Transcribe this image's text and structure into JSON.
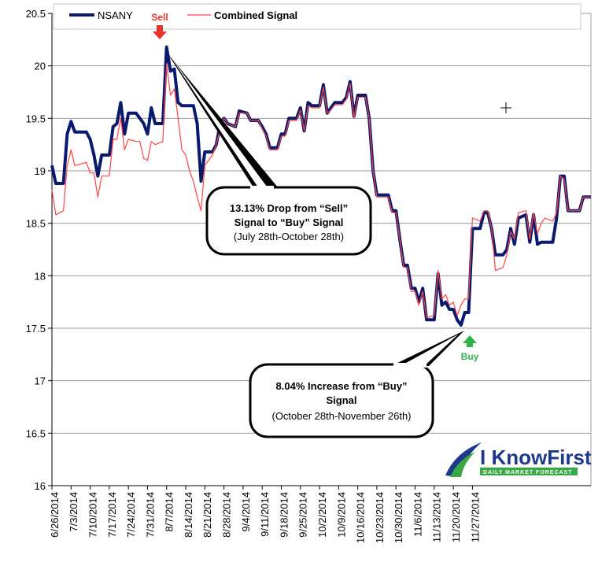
{
  "chart_data": {
    "type": "line",
    "title": "",
    "xlabel": "",
    "ylabel": "",
    "ylim": [
      16,
      20.5
    ],
    "yticks": [
      "16",
      "16.5",
      "17",
      "17.5",
      "18",
      "18.5",
      "19",
      "19.5",
      "20",
      "20.5"
    ],
    "x_tick_labels": [
      "6/26/2014",
      "7/3/2014",
      "7/10/2014",
      "7/17/2014",
      "7/24/2014",
      "7/31/2014",
      "8/7/2014",
      "8/14/2014",
      "8/21/2014",
      "8/28/2014",
      "9/4/2014",
      "9/11/2014",
      "9/18/2014",
      "9/25/2014",
      "10/2/2014",
      "10/9/2014",
      "10/16/2014",
      "10/23/2014",
      "10/30/2014",
      "11/6/2014",
      "11/13/2014",
      "11/20/2014",
      "11/27/2014"
    ],
    "grid": true,
    "legend_position": "top",
    "series": [
      {
        "name": "NSANY",
        "color": "#0a1a6e",
        "points": [
          [
            0,
            19.05
          ],
          [
            1,
            18.88
          ],
          [
            3,
            18.88
          ],
          [
            4,
            19.35
          ],
          [
            5,
            19.47
          ],
          [
            6,
            19.37
          ],
          [
            9,
            19.37
          ],
          [
            10,
            19.3
          ],
          [
            11,
            19.15
          ],
          [
            12,
            18.95
          ],
          [
            13,
            19.15
          ],
          [
            15,
            19.15
          ],
          [
            16,
            19.42
          ],
          [
            17,
            19.45
          ],
          [
            18,
            19.65
          ],
          [
            19,
            19.35
          ],
          [
            20,
            19.55
          ],
          [
            22,
            19.55
          ],
          [
            23,
            19.5
          ],
          [
            24,
            19.45
          ],
          [
            25,
            19.35
          ],
          [
            26,
            19.6
          ],
          [
            27,
            19.45
          ],
          [
            29,
            19.45
          ],
          [
            30,
            20.18
          ],
          [
            31,
            19.95
          ],
          [
            32,
            19.97
          ],
          [
            33,
            19.65
          ],
          [
            34,
            19.62
          ],
          [
            37,
            19.62
          ],
          [
            38,
            19.45
          ],
          [
            39,
            18.9
          ],
          [
            40,
            19.18
          ],
          [
            42,
            19.18
          ],
          [
            43,
            19.25
          ],
          [
            44,
            19.45
          ],
          [
            45,
            19.5
          ],
          [
            46,
            19.45
          ],
          [
            48,
            19.42
          ],
          [
            49,
            19.57
          ],
          [
            51,
            19.55
          ],
          [
            52,
            19.48
          ],
          [
            54,
            19.48
          ],
          [
            55,
            19.42
          ],
          [
            56,
            19.35
          ],
          [
            57,
            19.22
          ],
          [
            59,
            19.22
          ],
          [
            60,
            19.35
          ],
          [
            61,
            19.35
          ],
          [
            62,
            19.5
          ],
          [
            64,
            19.5
          ],
          [
            65,
            19.6
          ],
          [
            66,
            19.38
          ],
          [
            67,
            19.65
          ],
          [
            68,
            19.62
          ],
          [
            70,
            19.62
          ],
          [
            71,
            19.82
          ],
          [
            72,
            19.55
          ],
          [
            73,
            19.6
          ],
          [
            74,
            19.65
          ],
          [
            76,
            19.65
          ],
          [
            77,
            19.7
          ],
          [
            78,
            19.85
          ],
          [
            79,
            19.52
          ],
          [
            80,
            19.72
          ],
          [
            82,
            19.72
          ],
          [
            83,
            19.5
          ],
          [
            84,
            19.0
          ],
          [
            85,
            18.77
          ],
          [
            88,
            18.77
          ],
          [
            89,
            18.62
          ],
          [
            90,
            18.62
          ],
          [
            91,
            18.35
          ],
          [
            92,
            18.1
          ],
          [
            93,
            18.1
          ],
          [
            94,
            17.88
          ],
          [
            95,
            17.88
          ],
          [
            96,
            17.75
          ],
          [
            97,
            17.88
          ],
          [
            98,
            17.58
          ],
          [
            100,
            17.58
          ],
          [
            101,
            18.02
          ],
          [
            102,
            17.72
          ],
          [
            103,
            17.75
          ],
          [
            104,
            17.68
          ],
          [
            105,
            17.68
          ],
          [
            106,
            17.58
          ],
          [
            107,
            17.53
          ],
          [
            108,
            17.65
          ],
          [
            109,
            17.65
          ],
          [
            110,
            18.45
          ],
          [
            112,
            18.45
          ],
          [
            113,
            18.6
          ],
          [
            114,
            18.6
          ],
          [
            115,
            18.45
          ],
          [
            116,
            18.2
          ],
          [
            118,
            18.2
          ],
          [
            119,
            18.25
          ],
          [
            120,
            18.45
          ],
          [
            121,
            18.3
          ],
          [
            122,
            18.55
          ],
          [
            124,
            18.58
          ],
          [
            125,
            18.32
          ],
          [
            126,
            18.58
          ],
          [
            127,
            18.3
          ],
          [
            128,
            18.32
          ],
          [
            129,
            18.32
          ],
          [
            131,
            18.32
          ],
          [
            132,
            18.55
          ],
          [
            133,
            18.95
          ],
          [
            134,
            18.95
          ],
          [
            135,
            18.62
          ],
          [
            138,
            18.62
          ],
          [
            139,
            18.75
          ],
          [
            141,
            18.75
          ]
        ]
      },
      {
        "name": "Combined Signal",
        "color": "#ff4444",
        "points": [
          [
            0,
            18.82
          ],
          [
            1,
            18.58
          ],
          [
            3,
            18.62
          ],
          [
            4,
            19.05
          ],
          [
            5,
            19.2
          ],
          [
            6,
            19.05
          ],
          [
            9,
            19.08
          ],
          [
            10,
            18.98
          ],
          [
            11,
            18.98
          ],
          [
            12,
            18.75
          ],
          [
            13,
            18.95
          ],
          [
            15,
            18.95
          ],
          [
            16,
            19.3
          ],
          [
            17,
            19.3
          ],
          [
            18,
            19.5
          ],
          [
            19,
            19.2
          ],
          [
            20,
            19.3
          ],
          [
            22,
            19.28
          ],
          [
            23,
            19.28
          ],
          [
            24,
            19.12
          ],
          [
            25,
            19.1
          ],
          [
            26,
            19.28
          ],
          [
            27,
            19.25
          ],
          [
            29,
            19.28
          ],
          [
            30,
            20.02
          ],
          [
            31,
            19.72
          ],
          [
            32,
            19.78
          ],
          [
            33,
            19.5
          ],
          [
            34,
            19.2
          ],
          [
            35,
            19.15
          ],
          [
            36,
            19.0
          ],
          [
            37,
            18.9
          ],
          [
            38,
            18.75
          ],
          [
            39,
            18.62
          ],
          [
            40,
            19.05
          ],
          [
            42,
            19.15
          ],
          [
            43,
            19.25
          ],
          [
            44,
            19.4
          ],
          [
            45,
            19.5
          ],
          [
            46,
            19.45
          ],
          [
            48,
            19.42
          ],
          [
            49,
            19.55
          ],
          [
            51,
            19.55
          ],
          [
            52,
            19.48
          ],
          [
            54,
            19.48
          ],
          [
            55,
            19.4
          ],
          [
            56,
            19.33
          ],
          [
            57,
            19.2
          ],
          [
            59,
            19.2
          ],
          [
            60,
            19.33
          ],
          [
            61,
            19.33
          ],
          [
            62,
            19.48
          ],
          [
            64,
            19.48
          ],
          [
            65,
            19.58
          ],
          [
            66,
            19.38
          ],
          [
            67,
            19.62
          ],
          [
            68,
            19.6
          ],
          [
            70,
            19.6
          ],
          [
            71,
            19.8
          ],
          [
            72,
            19.55
          ],
          [
            73,
            19.58
          ],
          [
            74,
            19.63
          ],
          [
            76,
            19.63
          ],
          [
            77,
            19.68
          ],
          [
            78,
            19.83
          ],
          [
            79,
            19.5
          ],
          [
            80,
            19.7
          ],
          [
            82,
            19.7
          ],
          [
            83,
            19.5
          ],
          [
            84,
            19.0
          ],
          [
            85,
            18.75
          ],
          [
            88,
            18.75
          ],
          [
            89,
            18.6
          ],
          [
            90,
            18.6
          ],
          [
            91,
            18.35
          ],
          [
            92,
            18.08
          ],
          [
            93,
            18.08
          ],
          [
            94,
            17.85
          ],
          [
            95,
            17.85
          ],
          [
            96,
            17.72
          ],
          [
            97,
            17.85
          ],
          [
            98,
            17.6
          ],
          [
            100,
            17.62
          ],
          [
            101,
            18.05
          ],
          [
            102,
            17.78
          ],
          [
            103,
            17.82
          ],
          [
            104,
            17.72
          ],
          [
            105,
            17.75
          ],
          [
            106,
            17.62
          ],
          [
            107,
            17.72
          ],
          [
            108,
            17.78
          ],
          [
            109,
            17.78
          ],
          [
            110,
            18.55
          ],
          [
            112,
            18.52
          ],
          [
            113,
            18.62
          ],
          [
            114,
            18.62
          ],
          [
            115,
            18.45
          ],
          [
            116,
            18.05
          ],
          [
            118,
            18.08
          ],
          [
            119,
            18.2
          ],
          [
            120,
            18.42
          ],
          [
            121,
            18.35
          ],
          [
            122,
            18.6
          ],
          [
            124,
            18.62
          ],
          [
            125,
            18.35
          ],
          [
            126,
            18.6
          ],
          [
            127,
            18.4
          ],
          [
            128,
            18.5
          ],
          [
            129,
            18.55
          ],
          [
            131,
            18.52
          ],
          [
            132,
            18.6
          ],
          [
            133,
            18.95
          ],
          [
            134,
            18.92
          ],
          [
            135,
            18.62
          ],
          [
            138,
            18.62
          ],
          [
            139,
            18.75
          ],
          [
            141,
            18.75
          ]
        ]
      }
    ],
    "annotations": {
      "sell_label": "Sell",
      "buy_label": "Buy",
      "callout_drop_line1": "13.13% Drop from “Sell”",
      "callout_drop_line2": "Signal to “Buy” Signal",
      "callout_drop_line3": "(July 28th-October 28th)",
      "callout_increase_line1": "8.04% Increase from “Buy”",
      "callout_increase_line2": "Signal",
      "callout_increase_line3": "(October 28th-November 26th)"
    }
  },
  "colors": {
    "sell": "#e8332a",
    "buy": "#2db34a",
    "logo_dark": "#1b3a8c",
    "logo_green": "#3aa845"
  },
  "logo": {
    "name": "I KnowFirst",
    "tagline": "DAILY MARKET FORECAST"
  }
}
